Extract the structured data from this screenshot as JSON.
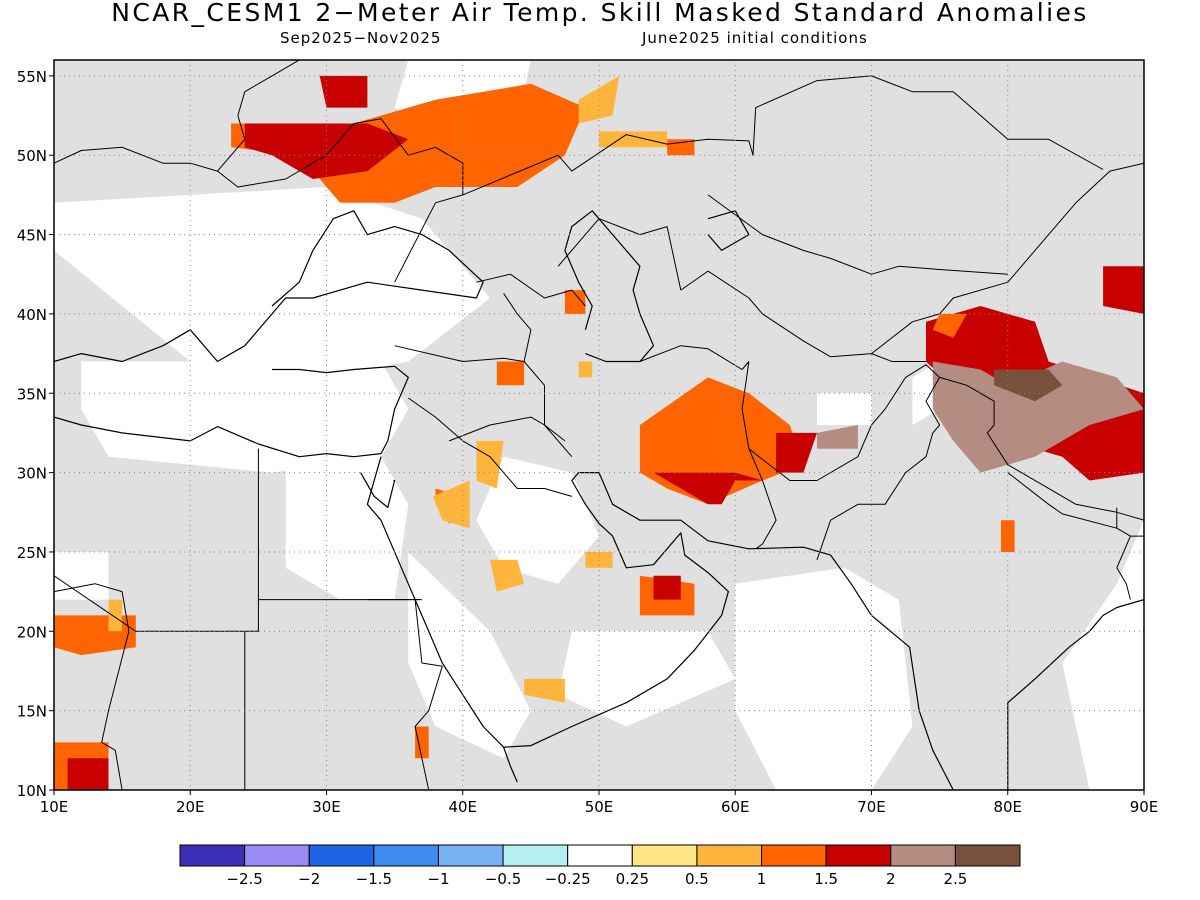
{
  "title": "NCAR_CESM1 2−Meter Air Temp. Skill Masked Standard Anomalies",
  "period": "Sep2025−Nov2025",
  "initial_conditions": "June2025 initial conditions",
  "map": {
    "lon_range": [
      10,
      90
    ],
    "lat_range": [
      10,
      56
    ],
    "lon_ticks": [
      "10E",
      "20E",
      "30E",
      "40E",
      "50E",
      "60E",
      "70E",
      "80E",
      "90E"
    ],
    "lat_ticks": [
      "10N",
      "15N",
      "20N",
      "25N",
      "30N",
      "35N",
      "40N",
      "45N",
      "50N",
      "55N"
    ],
    "grid": "dotted",
    "mask_color": "#e0e0e0",
    "land_color": "#ffffff"
  },
  "legend": {
    "labels": [
      "−2.5",
      "−2",
      "−1.5",
      "−1",
      "−0.5",
      "−0.25",
      "0.25",
      "0.5",
      "1",
      "1.5",
      "2",
      "2.5"
    ],
    "colors": [
      "#3a2fb5",
      "#9b8cf5",
      "#1e64e6",
      "#3c8cf0",
      "#78b4f5",
      "#b4f0f0",
      "#ffffff",
      "#ffe682",
      "#ffb43c",
      "#ff6400",
      "#c80000",
      "#b48c82",
      "#78503c"
    ]
  },
  "anomaly_regions": [
    {
      "color": "#ff6400",
      "points": [
        [
          23,
          52
        ],
        [
          32,
          52
        ],
        [
          38,
          53.5
        ],
        [
          45,
          54.5
        ],
        [
          49,
          53
        ],
        [
          47.5,
          50
        ],
        [
          44,
          48
        ],
        [
          38,
          48
        ],
        [
          35,
          47
        ],
        [
          31,
          47
        ],
        [
          28,
          50
        ],
        [
          23,
          50.5
        ]
      ]
    },
    {
      "color": "#c80000",
      "points": [
        [
          24,
          52
        ],
        [
          33,
          52
        ],
        [
          36,
          51
        ],
        [
          33,
          49
        ],
        [
          29,
          48.5
        ],
        [
          26,
          50
        ],
        [
          24,
          50.5
        ]
      ]
    },
    {
      "color": "#c80000",
      "points": [
        [
          29.5,
          55
        ],
        [
          33,
          55
        ],
        [
          33,
          53
        ],
        [
          30,
          53
        ]
      ]
    },
    {
      "color": "#ffb43c",
      "points": [
        [
          48.5,
          53.5
        ],
        [
          51.5,
          55
        ],
        [
          51,
          52.5
        ],
        [
          48.5,
          52
        ]
      ]
    },
    {
      "color": "#ffb43c",
      "points": [
        [
          50,
          51.5
        ],
        [
          55,
          51.5
        ],
        [
          55,
          50.5
        ],
        [
          50,
          50.5
        ]
      ]
    },
    {
      "color": "#ff6400",
      "points": [
        [
          55,
          51
        ],
        [
          57,
          51
        ],
        [
          57,
          50
        ],
        [
          55,
          50
        ]
      ]
    },
    {
      "color": "#ff6400",
      "points": [
        [
          47.5,
          41.5
        ],
        [
          49,
          41.5
        ],
        [
          49,
          40
        ],
        [
          47.5,
          40
        ]
      ]
    },
    {
      "color": "#ffb43c",
      "points": [
        [
          48.5,
          37
        ],
        [
          49.5,
          37
        ],
        [
          49.5,
          36
        ],
        [
          48.5,
          36
        ]
      ]
    },
    {
      "color": "#ff6400",
      "points": [
        [
          42.5,
          37
        ],
        [
          44.5,
          37
        ],
        [
          44.5,
          35.5
        ],
        [
          42.5,
          35.5
        ]
      ]
    },
    {
      "color": "#ffb43c",
      "points": [
        [
          41,
          32
        ],
        [
          43,
          32
        ],
        [
          42.5,
          29
        ],
        [
          41,
          29.5
        ]
      ]
    },
    {
      "color": "#ff6400",
      "points": [
        [
          38,
          29
        ],
        [
          40,
          28.5
        ],
        [
          40.5,
          27
        ],
        [
          39,
          26.8
        ],
        [
          38,
          28
        ]
      ]
    },
    {
      "color": "#ffb43c",
      "points": [
        [
          37.8,
          28.5
        ],
        [
          40.5,
          29.5
        ],
        [
          40.5,
          26.5
        ],
        [
          38.5,
          27
        ]
      ]
    },
    {
      "color": "#ffb43c",
      "points": [
        [
          42,
          24.5
        ],
        [
          44,
          24.5
        ],
        [
          44.5,
          23
        ],
        [
          42.5,
          22.5
        ]
      ]
    },
    {
      "color": "#ffb43c",
      "points": [
        [
          49,
          25
        ],
        [
          51,
          25
        ],
        [
          51,
          24
        ],
        [
          49,
          24
        ]
      ]
    },
    {
      "color": "#ff6400",
      "points": [
        [
          53,
          23.5
        ],
        [
          57,
          23
        ],
        [
          57,
          21
        ],
        [
          53,
          21
        ]
      ]
    },
    {
      "color": "#c80000",
      "points": [
        [
          54,
          23.5
        ],
        [
          56,
          23.5
        ],
        [
          56,
          22
        ],
        [
          54,
          22
        ]
      ]
    },
    {
      "color": "#ffb43c",
      "points": [
        [
          44.5,
          17
        ],
        [
          47.5,
          17
        ],
        [
          47.5,
          15.5
        ],
        [
          44.5,
          16
        ]
      ]
    },
    {
      "color": "#ff6400",
      "points": [
        [
          36.5,
          14
        ],
        [
          37.5,
          14
        ],
        [
          37.5,
          12
        ],
        [
          36.5,
          12
        ]
      ]
    },
    {
      "color": "#ff6400",
      "points": [
        [
          53,
          33
        ],
        [
          58,
          36
        ],
        [
          61,
          35
        ],
        [
          64,
          33
        ],
        [
          65,
          30.5
        ],
        [
          62,
          29.5
        ],
        [
          58,
          28
        ],
        [
          55,
          29
        ],
        [
          53,
          30
        ]
      ]
    },
    {
      "color": "#c80000",
      "points": [
        [
          54,
          30
        ],
        [
          56,
          29
        ],
        [
          58,
          28
        ],
        [
          59,
          28
        ],
        [
          60,
          29.5
        ],
        [
          62,
          29.5
        ],
        [
          60,
          30
        ],
        [
          56,
          30
        ]
      ]
    },
    {
      "color": "#c80000",
      "points": [
        [
          63,
          32.5
        ],
        [
          66,
          32.5
        ],
        [
          65,
          30
        ],
        [
          63,
          30
        ]
      ]
    },
    {
      "color": "#b48c82",
      "points": [
        [
          66,
          32.5
        ],
        [
          69,
          33
        ],
        [
          69,
          31.5
        ],
        [
          66,
          31.5
        ]
      ]
    },
    {
      "color": "#c80000",
      "points": [
        [
          74,
          39.5
        ],
        [
          78,
          40.5
        ],
        [
          82,
          39.5
        ],
        [
          83,
          37
        ],
        [
          90,
          35
        ],
        [
          90,
          30
        ],
        [
          86,
          29.5
        ],
        [
          84,
          31
        ],
        [
          80,
          32
        ],
        [
          77,
          34.5
        ],
        [
          74,
          37
        ]
      ]
    },
    {
      "color": "#c80000",
      "points": [
        [
          87,
          43
        ],
        [
          90,
          43
        ],
        [
          90,
          40
        ],
        [
          87,
          40.5
        ]
      ]
    },
    {
      "color": "#ff6400",
      "points": [
        [
          75,
          40
        ],
        [
          77,
          40
        ],
        [
          76,
          38.5
        ],
        [
          74.5,
          39
        ]
      ]
    },
    {
      "color": "#b48c82",
      "points": [
        [
          74.5,
          37
        ],
        [
          78,
          36.5
        ],
        [
          80,
          35.5
        ],
        [
          84,
          37
        ],
        [
          88,
          36
        ],
        [
          90,
          34
        ],
        [
          86,
          33
        ],
        [
          82,
          31
        ],
        [
          78,
          30
        ],
        [
          76,
          32
        ],
        [
          74.5,
          34
        ]
      ]
    },
    {
      "color": "#78503c",
      "points": [
        [
          79,
          36.5
        ],
        [
          83,
          36.5
        ],
        [
          84,
          35.5
        ],
        [
          82,
          34.5
        ],
        [
          79,
          35.5
        ]
      ]
    },
    {
      "color": "#ff6400",
      "points": [
        [
          79.5,
          27
        ],
        [
          80.5,
          27
        ],
        [
          80.5,
          25
        ],
        [
          79.5,
          25
        ]
      ]
    },
    {
      "color": "#ff6400",
      "points": [
        [
          10,
          21
        ],
        [
          16,
          21
        ],
        [
          16,
          19
        ],
        [
          12,
          18.5
        ],
        [
          10,
          19
        ]
      ]
    },
    {
      "color": "#ffb43c",
      "points": [
        [
          14,
          22
        ],
        [
          15,
          22
        ],
        [
          15,
          20
        ],
        [
          14,
          20
        ]
      ]
    },
    {
      "color": "#ff6400",
      "points": [
        [
          10,
          13
        ],
        [
          14,
          13
        ],
        [
          14,
          10
        ],
        [
          10,
          10
        ]
      ]
    },
    {
      "color": "#c80000",
      "points": [
        [
          11,
          12
        ],
        [
          14,
          12
        ],
        [
          14,
          10
        ],
        [
          11,
          10
        ]
      ]
    }
  ]
}
